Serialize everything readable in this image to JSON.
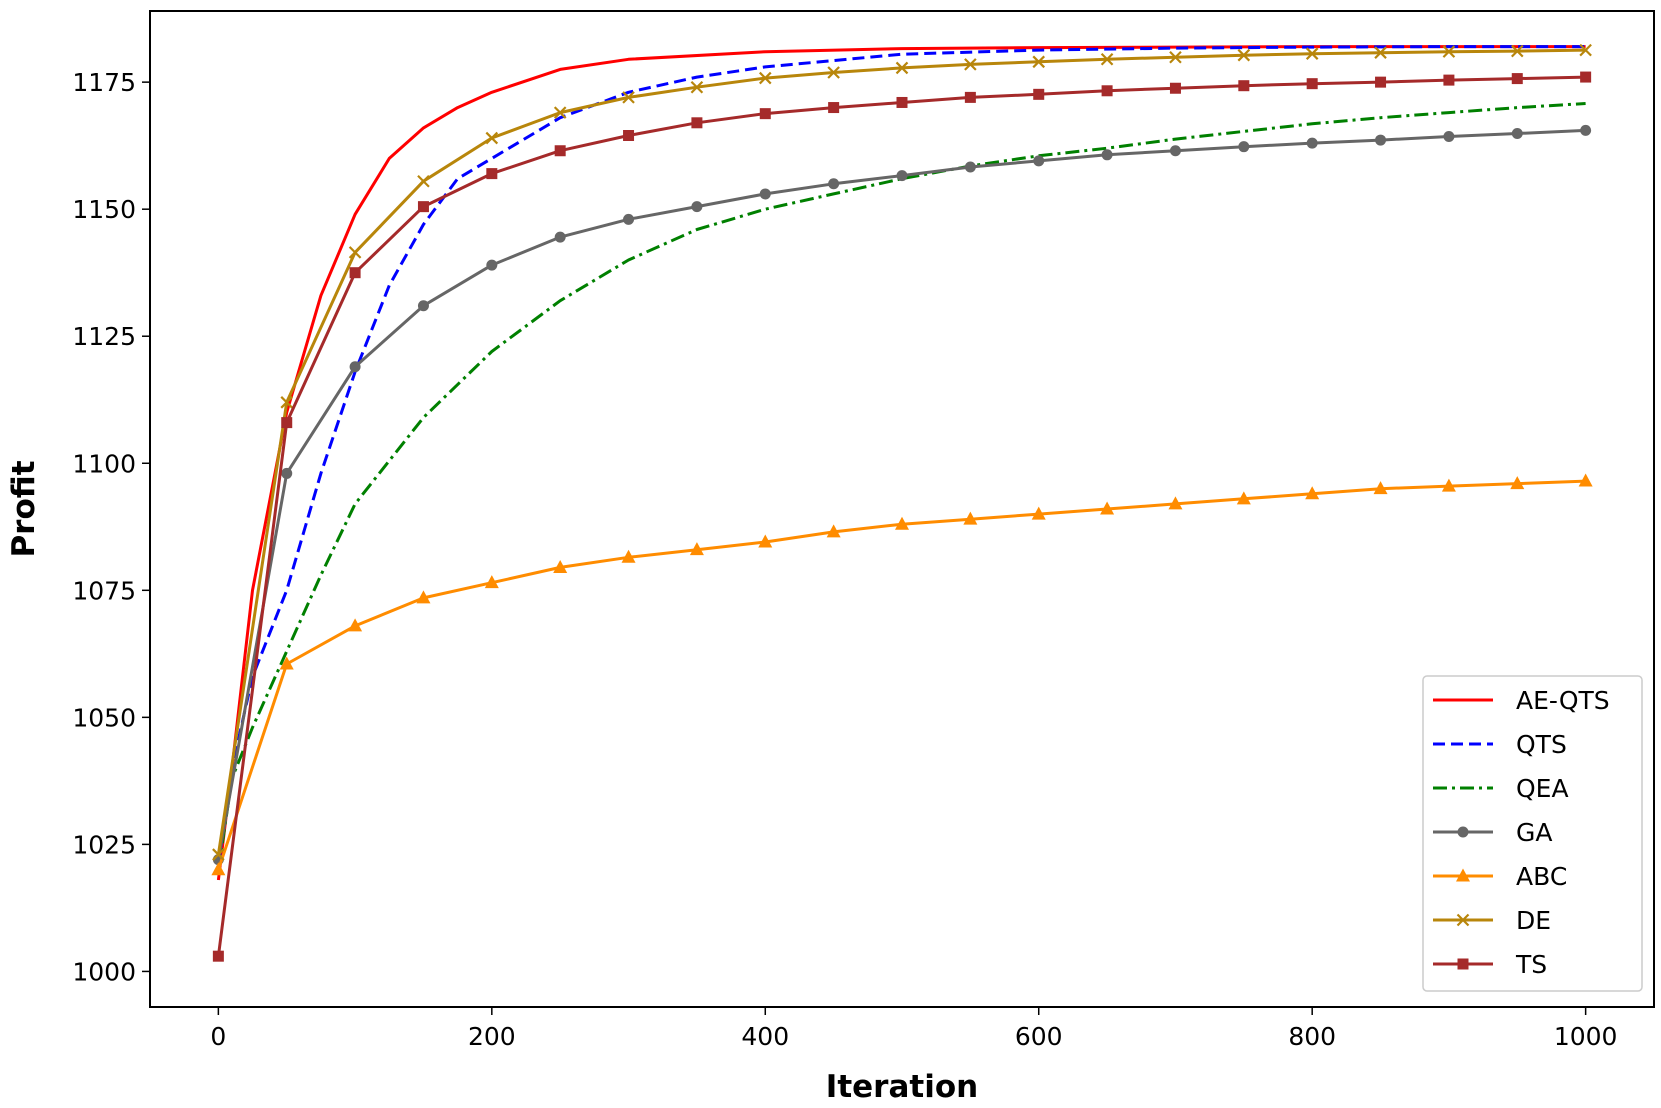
{
  "chart_data": {
    "type": "line",
    "xlabel": "Iteration",
    "ylabel": "Profit",
    "xlim": [
      -50,
      1050
    ],
    "ylim": [
      993,
      1189
    ],
    "x_ticks": [
      0,
      200,
      400,
      600,
      800,
      1000
    ],
    "y_ticks": [
      1000,
      1025,
      1050,
      1075,
      1100,
      1125,
      1150,
      1175
    ],
    "grid": false,
    "legend_position": "lower-right",
    "series": [
      {
        "name": "AE-QTS",
        "color": "#ff0000",
        "dash": "solid",
        "marker": "none",
        "x": [
          0,
          10,
          25,
          50,
          75,
          100,
          125,
          150,
          175,
          200,
          250,
          300,
          400,
          500,
          600,
          700,
          800,
          900,
          1000
        ],
        "y": [
          1018,
          1040,
          1075,
          1110,
          1133,
          1149,
          1160,
          1166,
          1170,
          1173,
          1177.5,
          1179.5,
          1181,
          1181.6,
          1181.8,
          1181.9,
          1182,
          1182,
          1182
        ]
      },
      {
        "name": "QTS",
        "color": "#0000ff",
        "dash": "dashed",
        "marker": "none",
        "x": [
          0,
          10,
          25,
          50,
          75,
          100,
          125,
          150,
          175,
          200,
          250,
          300,
          350,
          400,
          500,
          600,
          700,
          800,
          900,
          1000
        ],
        "y": [
          1021,
          1040,
          1058,
          1075,
          1098,
          1118,
          1135,
          1147,
          1156,
          1160,
          1168,
          1173,
          1176,
          1178,
          1180.5,
          1181.3,
          1181.7,
          1181.9,
          1182,
          1182
        ]
      },
      {
        "name": "QEA",
        "color": "#008000",
        "dash": "dashdot",
        "marker": "none",
        "x": [
          0,
          10,
          25,
          50,
          75,
          100,
          150,
          200,
          250,
          300,
          350,
          400,
          450,
          500,
          550,
          600,
          650,
          700,
          750,
          800,
          850,
          900,
          950,
          1000
        ],
        "y": [
          1020,
          1038,
          1048,
          1063,
          1078,
          1092,
          1109,
          1122,
          1132,
          1140,
          1146,
          1150,
          1153,
          1156,
          1158.5,
          1160.5,
          1162,
          1163.8,
          1165.3,
          1166.8,
          1168,
          1169,
          1170,
          1170.8
        ]
      },
      {
        "name": "GA",
        "color": "#666666",
        "dash": "solid",
        "marker": "circle",
        "x": [
          0,
          50,
          100,
          150,
          200,
          250,
          300,
          350,
          400,
          450,
          500,
          550,
          600,
          650,
          700,
          750,
          800,
          850,
          900,
          950,
          1000
        ],
        "y": [
          1022,
          1098,
          1119,
          1131,
          1139,
          1144.5,
          1148,
          1150.5,
          1153,
          1155,
          1156.6,
          1158.3,
          1159.5,
          1160.7,
          1161.5,
          1162.3,
          1163,
          1163.6,
          1164.3,
          1164.9,
          1165.5
        ]
      },
      {
        "name": "ABC",
        "color": "#ff8c00",
        "dash": "solid",
        "marker": "triangle",
        "x": [
          0,
          50,
          100,
          150,
          200,
          250,
          300,
          350,
          400,
          450,
          500,
          550,
          600,
          650,
          700,
          750,
          800,
          850,
          900,
          950,
          1000
        ],
        "y": [
          1020,
          1060.5,
          1068,
          1073.5,
          1076.5,
          1079.5,
          1081.5,
          1083,
          1084.5,
          1086.5,
          1088,
          1089,
          1090,
          1091,
          1092,
          1093,
          1094,
          1095,
          1095.5,
          1096,
          1096.5
        ]
      },
      {
        "name": "DE",
        "color": "#b8860b",
        "dash": "solid",
        "marker": "x",
        "x": [
          0,
          50,
          100,
          150,
          200,
          250,
          300,
          350,
          400,
          450,
          500,
          550,
          600,
          650,
          700,
          750,
          800,
          850,
          900,
          950,
          1000
        ],
        "y": [
          1023,
          1112,
          1141.5,
          1155.5,
          1164,
          1169,
          1172,
          1174,
          1175.8,
          1176.9,
          1177.8,
          1178.5,
          1179,
          1179.5,
          1179.9,
          1180.3,
          1180.6,
          1180.8,
          1181,
          1181.1,
          1181.3
        ]
      },
      {
        "name": "TS",
        "color": "#a52a2a",
        "dash": "solid",
        "marker": "square",
        "x": [
          0,
          50,
          100,
          150,
          200,
          250,
          300,
          350,
          400,
          450,
          500,
          550,
          600,
          650,
          700,
          750,
          800,
          850,
          900,
          950,
          1000
        ],
        "y": [
          1003,
          1108,
          1137.5,
          1150.5,
          1157,
          1161.5,
          1164.5,
          1167,
          1168.8,
          1170,
          1171,
          1172,
          1172.6,
          1173.3,
          1173.8,
          1174.3,
          1174.7,
          1175,
          1175.4,
          1175.7,
          1176
        ]
      }
    ]
  }
}
